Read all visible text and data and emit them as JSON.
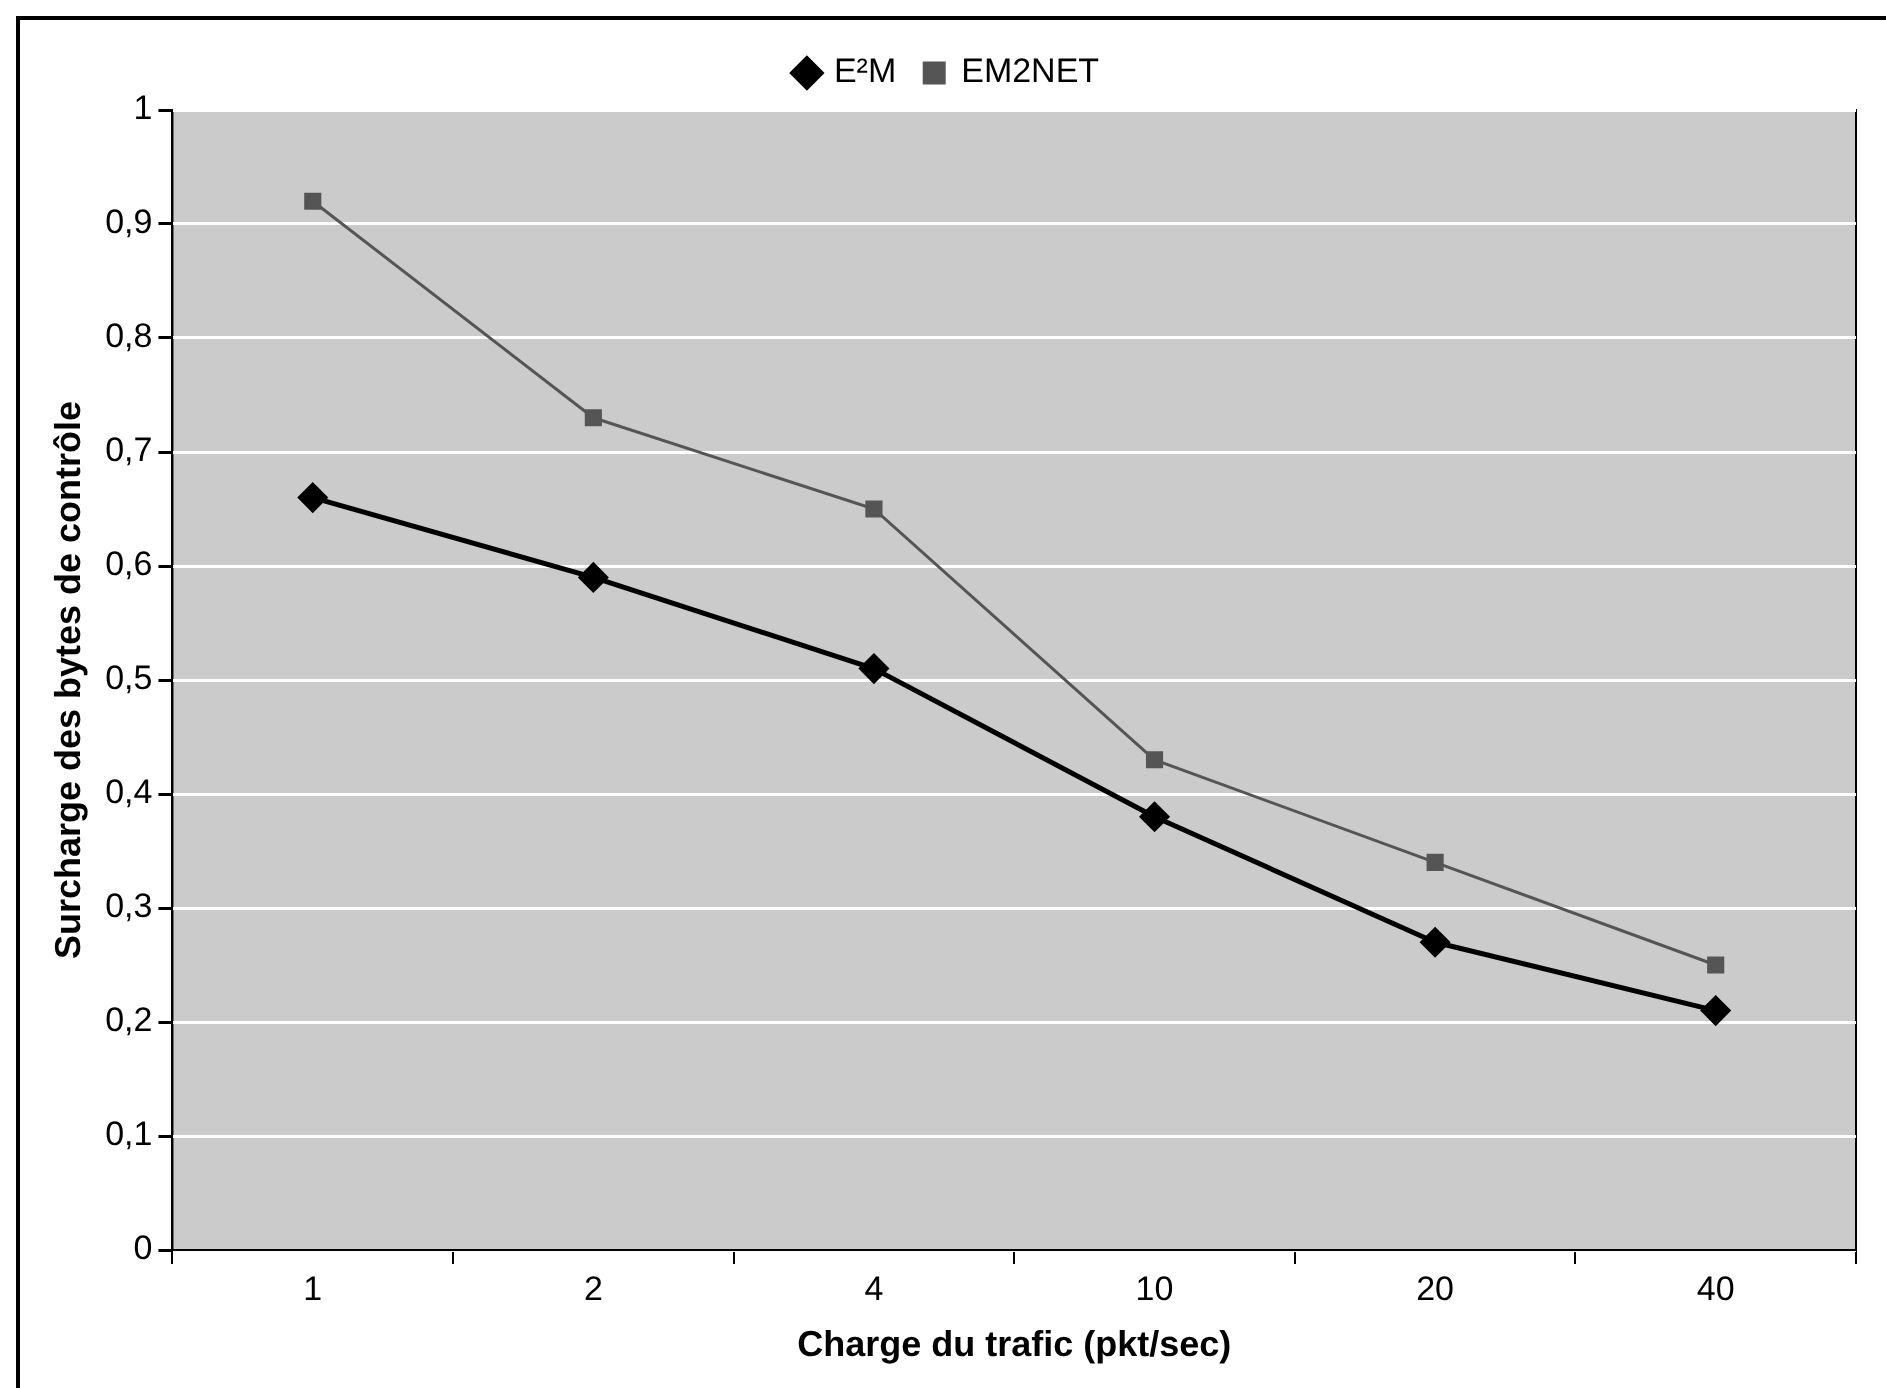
{
  "chart_data": {
    "type": "line",
    "xlabel": "Charge du trafic (pkt/sec)",
    "ylabel": "Surcharge des bytes de contrôle",
    "categories": [
      "1",
      "2",
      "4",
      "10",
      "20",
      "40"
    ],
    "series": [
      {
        "name": "E²M",
        "color": "#000000",
        "marker": "diamond",
        "values": [
          0.66,
          0.59,
          0.51,
          0.38,
          0.27,
          0.21
        ]
      },
      {
        "name": "EM2NET",
        "color": "#555555",
        "marker": "square",
        "values": [
          0.92,
          0.73,
          0.65,
          0.43,
          0.34,
          0.25
        ]
      }
    ],
    "ylim": [
      0,
      1
    ],
    "yticks": [
      0,
      {
        "value": 0.1,
        "label": "0,1"
      },
      {
        "value": 0.2,
        "label": "0,2"
      },
      {
        "value": 0.3,
        "label": "0,3"
      },
      {
        "value": 0.4,
        "label": "0,4"
      },
      {
        "value": 0.5,
        "label": "0,5"
      },
      {
        "value": 0.6,
        "label": "0,6"
      },
      {
        "value": 0.7,
        "label": "0,7"
      },
      {
        "value": 0.8,
        "label": "0,8"
      },
      {
        "value": 0.9,
        "label": "0,9"
      },
      1
    ],
    "grid": "y",
    "legend": "top",
    "line_style": "solid"
  }
}
